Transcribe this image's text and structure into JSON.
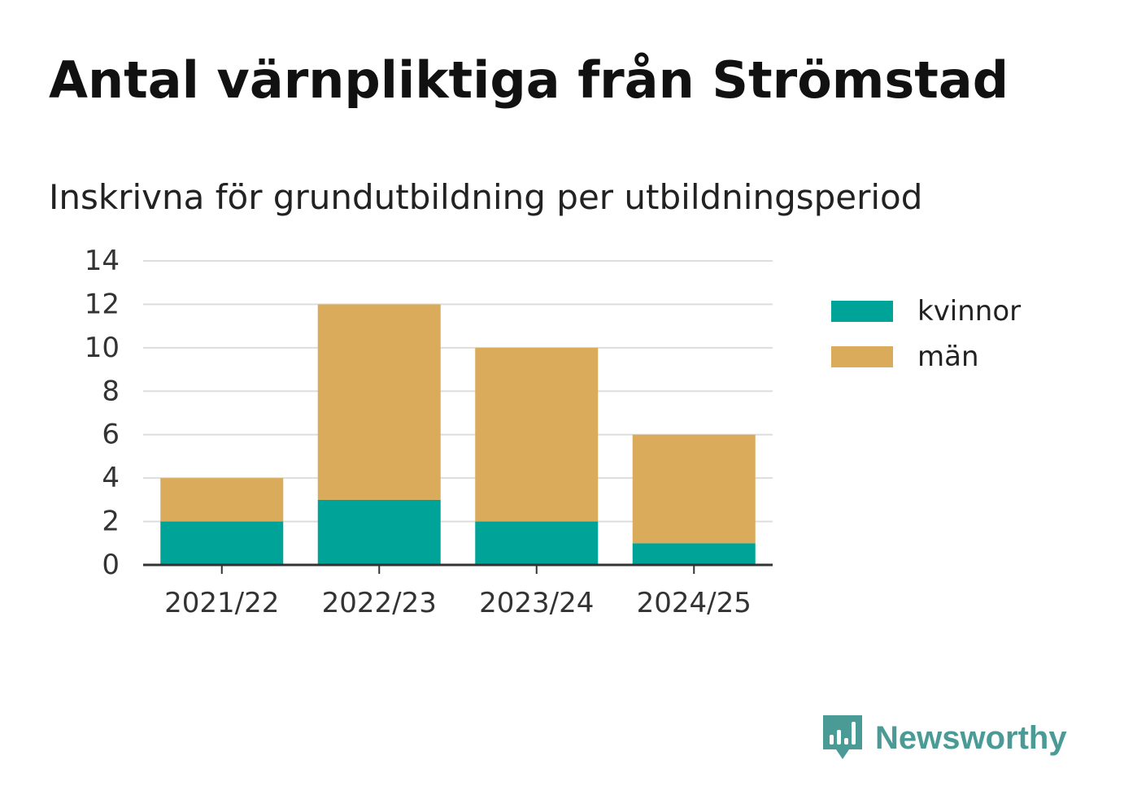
{
  "title": "Antal värnpliktiga från Strömstad",
  "subtitle": "Inskrivna för grundutbildning per utbildningsperiod",
  "colors": {
    "kvinnor": "#00a398",
    "man": "#d9ab5a",
    "grid": "#dddddd",
    "axis": "#333333",
    "brand": "#4a9a95"
  },
  "chart_data": {
    "type": "bar",
    "stacked": true,
    "categories": [
      "2021/22",
      "2022/23",
      "2023/24",
      "2024/25"
    ],
    "series": [
      {
        "name": "kvinnor",
        "values": [
          2,
          3,
          2,
          1
        ]
      },
      {
        "name": "män",
        "values": [
          2,
          9,
          8,
          5
        ]
      }
    ],
    "ylim": [
      0,
      14
    ],
    "yticks": [
      "0",
      "2",
      "4",
      "6",
      "8",
      "10",
      "12",
      "14"
    ],
    "grid": true,
    "legend": "right"
  },
  "legend": [
    {
      "label": "kvinnor"
    },
    {
      "label": "män"
    }
  ],
  "brand": {
    "name": "Newsworthy",
    "icon": "newsworthy-logo-icon"
  }
}
